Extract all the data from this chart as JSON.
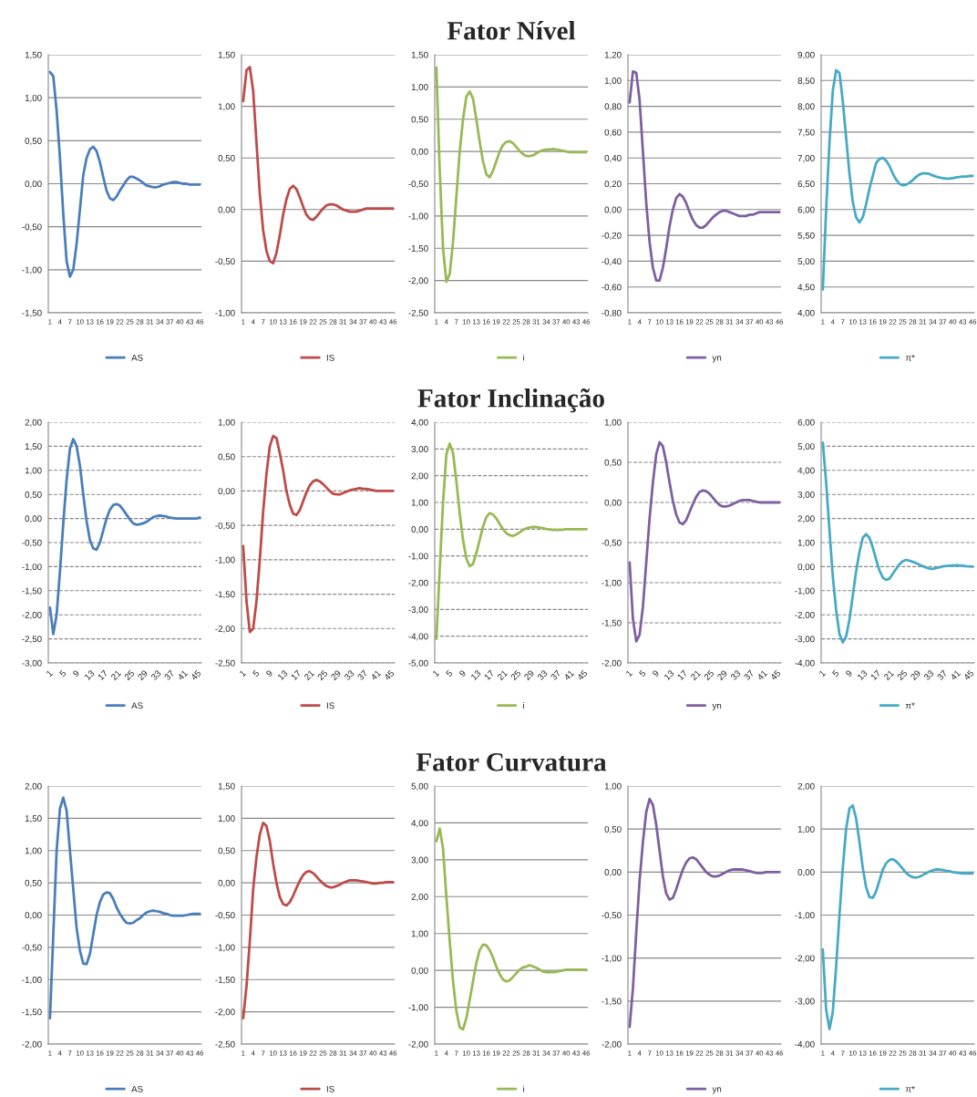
{
  "chart_data": [
    {
      "type": "line",
      "categories": [
        "1",
        null,
        null,
        "4",
        null,
        null,
        "7",
        null,
        null,
        "10",
        null,
        null,
        "13",
        null,
        null,
        "16",
        null,
        null,
        "19",
        null,
        null,
        "22",
        null,
        null,
        "25",
        null,
        null,
        "28",
        null,
        null,
        "31",
        null,
        null,
        "34",
        null,
        null,
        "37",
        null,
        null,
        "40",
        null,
        null,
        "43",
        null,
        null,
        "46"
      ],
      "series": [
        {
          "name": "AS",
          "color": "#4a7ebb",
          "values": [
            1.3,
            1.25,
            0.85,
            0.3,
            -0.35,
            -0.9,
            -1.08,
            -1.0,
            -0.7,
            -0.3,
            0.1,
            0.3,
            0.4,
            0.43,
            0.38,
            0.25,
            0.08,
            -0.08,
            -0.17,
            -0.19,
            -0.15,
            -0.08,
            -0.02,
            0.04,
            0.08,
            0.08,
            0.06,
            0.04,
            0.01,
            -0.02,
            -0.03,
            -0.04,
            -0.04,
            -0.03,
            -0.01,
            0.0,
            0.01,
            0.02,
            0.02,
            0.01,
            0.0,
            0.0,
            -0.01,
            -0.01,
            -0.01,
            -0.01
          ]
        }
      ],
      "ylim": [
        -1.5,
        1.5
      ],
      "yticks": [
        {
          "value": -1.5,
          "label": "-1,50"
        },
        {
          "value": -1,
          "label": "-1,00"
        },
        {
          "value": -0.5,
          "label": "-0,50"
        },
        {
          "value": 0,
          "label": "0,00"
        },
        {
          "value": 0.5,
          "label": "0,50"
        },
        {
          "value": 1,
          "label": "1,00"
        },
        {
          "value": 1.5,
          "label": "1,50"
        }
      ],
      "grid": "y",
      "legend": "bottom"
    },
    {
      "type": "line",
      "categories": [
        "1",
        null,
        null,
        "4",
        null,
        null,
        "7",
        null,
        null,
        "10",
        null,
        null,
        "13",
        null,
        null,
        "16",
        null,
        null,
        "19",
        null,
        null,
        "22",
        null,
        null,
        "25",
        null,
        null,
        "28",
        null,
        null,
        "31",
        null,
        null,
        "34",
        null,
        null,
        "37",
        null,
        null,
        "40",
        null,
        null,
        "43",
        null,
        null,
        "46"
      ],
      "series": [
        {
          "name": "IS",
          "color": "#be4b48",
          "values": [
            1.05,
            1.35,
            1.38,
            1.15,
            0.65,
            0.15,
            -0.2,
            -0.4,
            -0.5,
            -0.52,
            -0.42,
            -0.25,
            -0.05,
            0.1,
            0.2,
            0.23,
            0.2,
            0.12,
            0.03,
            -0.05,
            -0.09,
            -0.1,
            -0.07,
            -0.03,
            0.01,
            0.04,
            0.05,
            0.05,
            0.04,
            0.02,
            0.0,
            -0.01,
            -0.02,
            -0.02,
            -0.02,
            -0.01,
            0.0,
            0.01,
            0.01,
            0.01,
            0.01,
            0.01,
            0.01,
            0.01,
            0.01,
            0.01
          ]
        }
      ],
      "ylim": [
        -1,
        1.5
      ],
      "yticks": [
        {
          "value": -1,
          "label": "-1,00"
        },
        {
          "value": -0.5,
          "label": "-0,50"
        },
        {
          "value": 0,
          "label": "0,00"
        },
        {
          "value": 0.5,
          "label": "0,50"
        },
        {
          "value": 1,
          "label": "1,00"
        },
        {
          "value": 1.5,
          "label": "1,50"
        }
      ],
      "grid": "y",
      "legend": "bottom"
    },
    {
      "type": "line",
      "title": "Fator Nível",
      "categories": [
        "1",
        null,
        null,
        "4",
        null,
        null,
        "7",
        null,
        null,
        "10",
        null,
        null,
        "13",
        null,
        null,
        "16",
        null,
        null,
        "19",
        null,
        null,
        "22",
        null,
        null,
        "25",
        null,
        null,
        "28",
        null,
        null,
        "31",
        null,
        null,
        "34",
        null,
        null,
        "37",
        null,
        null,
        "40",
        null,
        null,
        "43",
        null,
        null,
        "46"
      ],
      "series": [
        {
          "name": "i",
          "color": "#98b954",
          "values": [
            1.3,
            -0.3,
            -1.5,
            -2.02,
            -1.9,
            -1.4,
            -0.7,
            0.0,
            0.5,
            0.85,
            0.93,
            0.82,
            0.5,
            0.15,
            -0.15,
            -0.35,
            -0.4,
            -0.3,
            -0.15,
            0.0,
            0.1,
            0.15,
            0.16,
            0.13,
            0.07,
            0.01,
            -0.04,
            -0.07,
            -0.07,
            -0.06,
            -0.03,
            0.0,
            0.02,
            0.03,
            0.03,
            0.04,
            0.03,
            0.02,
            0.01,
            0.0,
            -0.01,
            -0.01,
            -0.01,
            -0.01,
            -0.01,
            -0.01
          ]
        }
      ],
      "ylim": [
        -2.5,
        1.5
      ],
      "yticks": [
        {
          "value": -2.5,
          "label": "-2,50"
        },
        {
          "value": -2,
          "label": "-2,00"
        },
        {
          "value": -1.5,
          "label": "-1,50"
        },
        {
          "value": -1,
          "label": "-1,00"
        },
        {
          "value": -0.5,
          "label": "-0,50"
        },
        {
          "value": 0,
          "label": "0,00"
        },
        {
          "value": 0.5,
          "label": "0,50"
        },
        {
          "value": 1,
          "label": "1,00"
        },
        {
          "value": 1.5,
          "label": "1,50"
        }
      ],
      "grid": "y",
      "legend": "bottom"
    },
    {
      "type": "line",
      "categories": [
        "1",
        null,
        null,
        "4",
        null,
        null,
        "7",
        null,
        null,
        "10",
        null,
        null,
        "13",
        null,
        null,
        "16",
        null,
        null,
        "19",
        null,
        null,
        "22",
        null,
        null,
        "25",
        null,
        null,
        "28",
        null,
        null,
        "31",
        null,
        null,
        "34",
        null,
        null,
        "37",
        null,
        null,
        "40",
        null,
        null,
        "43",
        null,
        null,
        "46"
      ],
      "series": [
        {
          "name": "yn",
          "color": "#7d60a0",
          "values": [
            0.83,
            1.07,
            1.06,
            0.85,
            0.45,
            0.05,
            -0.25,
            -0.45,
            -0.55,
            -0.55,
            -0.45,
            -0.3,
            -0.13,
            0.0,
            0.09,
            0.12,
            0.1,
            0.05,
            -0.02,
            -0.08,
            -0.12,
            -0.14,
            -0.14,
            -0.12,
            -0.09,
            -0.06,
            -0.04,
            -0.02,
            -0.01,
            -0.01,
            -0.02,
            -0.03,
            -0.04,
            -0.05,
            -0.05,
            -0.05,
            -0.04,
            -0.04,
            -0.03,
            -0.02,
            -0.02,
            -0.02,
            -0.02,
            -0.02,
            -0.02,
            -0.02
          ]
        }
      ],
      "ylim": [
        -0.8,
        1.2
      ],
      "yticks": [
        {
          "value": -0.8,
          "label": "-0,80"
        },
        {
          "value": -0.6,
          "label": "-0,60"
        },
        {
          "value": -0.4,
          "label": "-0,40"
        },
        {
          "value": -0.2,
          "label": "-0,20"
        },
        {
          "value": 0,
          "label": "0,00"
        },
        {
          "value": 0.2,
          "label": "0,20"
        },
        {
          "value": 0.4,
          "label": "0,40"
        },
        {
          "value": 0.6,
          "label": "0,60"
        },
        {
          "value": 0.8,
          "label": "0,80"
        },
        {
          "value": 1,
          "label": "1,00"
        },
        {
          "value": 1.2,
          "label": "1,20"
        }
      ],
      "grid": "y",
      "legend": "bottom"
    },
    {
      "type": "line",
      "categories": [
        "1",
        null,
        null,
        "4",
        null,
        null,
        "7",
        null,
        null,
        "10",
        null,
        null,
        "13",
        null,
        null,
        "16",
        null,
        null,
        "19",
        null,
        null,
        "22",
        null,
        null,
        "25",
        null,
        null,
        "28",
        null,
        null,
        "31",
        null,
        null,
        "34",
        null,
        null,
        "37",
        null,
        null,
        "40",
        null,
        null,
        "43",
        null,
        null,
        "46"
      ],
      "series": [
        {
          "name": "π*",
          "color": "#46aac5",
          "values": [
            4.45,
            6.0,
            7.3,
            8.3,
            8.7,
            8.65,
            8.1,
            7.4,
            6.7,
            6.15,
            5.85,
            5.75,
            5.85,
            6.1,
            6.4,
            6.65,
            6.9,
            6.98,
            7.0,
            6.95,
            6.85,
            6.7,
            6.58,
            6.5,
            6.47,
            6.48,
            6.52,
            6.57,
            6.63,
            6.68,
            6.7,
            6.7,
            6.69,
            6.66,
            6.64,
            6.62,
            6.61,
            6.6,
            6.6,
            6.61,
            6.62,
            6.63,
            6.64,
            6.64,
            6.65,
            6.65
          ]
        }
      ],
      "ylim": [
        4,
        9
      ],
      "yticks": [
        {
          "value": 4,
          "label": "4,00"
        },
        {
          "value": 4.5,
          "label": "4,50"
        },
        {
          "value": 5,
          "label": "5,00"
        },
        {
          "value": 5.5,
          "label": "5,50"
        },
        {
          "value": 6,
          "label": "6,00"
        },
        {
          "value": 6.5,
          "label": "6,50"
        },
        {
          "value": 7,
          "label": "7,00"
        },
        {
          "value": 7.5,
          "label": "7,50"
        },
        {
          "value": 8,
          "label": "8,00"
        },
        {
          "value": 8.5,
          "label": "8,50"
        },
        {
          "value": 9,
          "label": "9,00"
        }
      ],
      "grid": "y",
      "legend": "bottom"
    },
    {
      "type": "line",
      "categories": [
        "1",
        null,
        null,
        null,
        "5",
        null,
        null,
        null,
        "9",
        null,
        null,
        null,
        "13",
        null,
        null,
        null,
        "17",
        null,
        null,
        null,
        "21",
        null,
        null,
        null,
        "25",
        null,
        null,
        null,
        "29",
        null,
        null,
        null,
        "33",
        null,
        null,
        null,
        "37",
        null,
        null,
        null,
        "41",
        null,
        null,
        null,
        "45",
        null
      ],
      "series": [
        {
          "name": "AS",
          "color": "#4a7ebb",
          "values": [
            -1.85,
            -2.4,
            -2.0,
            -1.1,
            -0.1,
            0.8,
            1.45,
            1.65,
            1.5,
            1.1,
            0.5,
            -0.05,
            -0.45,
            -0.62,
            -0.65,
            -0.5,
            -0.25,
            0.0,
            0.18,
            0.28,
            0.3,
            0.27,
            0.18,
            0.08,
            -0.02,
            -0.1,
            -0.13,
            -0.12,
            -0.1,
            -0.07,
            -0.02,
            0.03,
            0.05,
            0.06,
            0.05,
            0.04,
            0.02,
            0.01,
            0.0,
            0.0,
            0.0,
            0.0,
            0.0,
            0.0,
            0.0,
            0.02
          ]
        }
      ],
      "ylim": [
        -3,
        2
      ],
      "yticks": [
        {
          "value": -3,
          "label": "-3,00"
        },
        {
          "value": -2.5,
          "label": "-2,50"
        },
        {
          "value": -2,
          "label": "-2,00"
        },
        {
          "value": -1.5,
          "label": "-1,50"
        },
        {
          "value": -1,
          "label": "-1,00"
        },
        {
          "value": -0.5,
          "label": "-0,50"
        },
        {
          "value": 0,
          "label": "0,00"
        },
        {
          "value": 0.5,
          "label": "0,50"
        },
        {
          "value": 1,
          "label": "1,00"
        },
        {
          "value": 1.5,
          "label": "1,50"
        },
        {
          "value": 2,
          "label": "2,00"
        }
      ],
      "grid": "y",
      "legend": "bottom"
    },
    {
      "type": "line",
      "categories": [
        "1",
        null,
        null,
        null,
        "5",
        null,
        null,
        null,
        "9",
        null,
        null,
        null,
        "13",
        null,
        null,
        null,
        "17",
        null,
        null,
        null,
        "21",
        null,
        null,
        null,
        "25",
        null,
        null,
        null,
        "29",
        null,
        null,
        null,
        "33",
        null,
        null,
        null,
        "37",
        null,
        null,
        null,
        "41",
        null,
        null,
        null,
        "45",
        null
      ],
      "series": [
        {
          "name": "IS",
          "color": "#be4b48",
          "values": [
            -0.8,
            -1.6,
            -2.05,
            -2.0,
            -1.6,
            -1.0,
            -0.3,
            0.25,
            0.65,
            0.8,
            0.77,
            0.55,
            0.3,
            0.0,
            -0.2,
            -0.33,
            -0.35,
            -0.28,
            -0.15,
            -0.02,
            0.08,
            0.14,
            0.16,
            0.14,
            0.1,
            0.05,
            0.0,
            -0.04,
            -0.05,
            -0.05,
            -0.03,
            -0.01,
            0.01,
            0.02,
            0.03,
            0.04,
            0.03,
            0.03,
            0.02,
            0.01,
            0.0,
            0.0,
            0.0,
            0.0,
            0.0,
            0.0
          ]
        }
      ],
      "ylim": [
        -2.5,
        1
      ],
      "yticks": [
        {
          "value": -2.5,
          "label": "-2,50"
        },
        {
          "value": -2,
          "label": "-2,00"
        },
        {
          "value": -1.5,
          "label": "-1,50"
        },
        {
          "value": -1,
          "label": "-1,00"
        },
        {
          "value": -0.5,
          "label": "-0,50"
        },
        {
          "value": 0,
          "label": "0,00"
        },
        {
          "value": 0.5,
          "label": "0,50"
        },
        {
          "value": 1,
          "label": "1,00"
        }
      ],
      "grid": "y",
      "legend": "bottom"
    },
    {
      "type": "line",
      "title": "Fator Inclinação",
      "categories": [
        "1",
        null,
        null,
        null,
        "5",
        null,
        null,
        null,
        "9",
        null,
        null,
        null,
        "13",
        null,
        null,
        null,
        "17",
        null,
        null,
        null,
        "21",
        null,
        null,
        null,
        "25",
        null,
        null,
        null,
        "29",
        null,
        null,
        null,
        "33",
        null,
        null,
        null,
        "37",
        null,
        null,
        null,
        "41",
        null,
        null,
        null,
        "45",
        null
      ],
      "series": [
        {
          "name": "i",
          "color": "#98b954",
          "values": [
            -4.1,
            -1.5,
            1.0,
            2.8,
            3.2,
            2.85,
            1.8,
            0.6,
            -0.4,
            -1.1,
            -1.38,
            -1.3,
            -0.9,
            -0.4,
            0.1,
            0.45,
            0.6,
            0.55,
            0.4,
            0.2,
            0.0,
            -0.15,
            -0.22,
            -0.25,
            -0.2,
            -0.12,
            -0.03,
            0.03,
            0.07,
            0.08,
            0.08,
            0.06,
            0.04,
            0.01,
            -0.01,
            -0.03,
            -0.03,
            -0.03,
            -0.02,
            0.0,
            0.0,
            0.0,
            0.0,
            0.0,
            0.0,
            0.0
          ]
        }
      ],
      "ylim": [
        -5,
        4
      ],
      "yticks": [
        {
          "value": -5,
          "label": "-5,00"
        },
        {
          "value": -4,
          "label": "-4,00"
        },
        {
          "value": -3,
          "label": "-3,00"
        },
        {
          "value": -2,
          "label": "-2,00"
        },
        {
          "value": -1,
          "label": "-1,00"
        },
        {
          "value": 0,
          "label": "0,00"
        },
        {
          "value": 1,
          "label": "1,00"
        },
        {
          "value": 2,
          "label": "2,00"
        },
        {
          "value": 3,
          "label": "3,00"
        },
        {
          "value": 4,
          "label": "4,00"
        }
      ],
      "grid": "y",
      "legend": "bottom"
    },
    {
      "type": "line",
      "categories": [
        "1",
        null,
        null,
        null,
        "5",
        null,
        null,
        null,
        "9",
        null,
        null,
        null,
        "13",
        null,
        null,
        null,
        "17",
        null,
        null,
        null,
        "21",
        null,
        null,
        null,
        "25",
        null,
        null,
        null,
        "29",
        null,
        null,
        null,
        "33",
        null,
        null,
        null,
        "37",
        null,
        null,
        null,
        "41",
        null,
        null,
        null,
        "45",
        null
      ],
      "series": [
        {
          "name": "yn",
          "color": "#7d60a0",
          "values": [
            -0.75,
            -1.45,
            -1.73,
            -1.65,
            -1.3,
            -0.75,
            -0.2,
            0.25,
            0.6,
            0.75,
            0.7,
            0.5,
            0.25,
            0.02,
            -0.15,
            -0.25,
            -0.27,
            -0.22,
            -0.12,
            -0.02,
            0.07,
            0.13,
            0.15,
            0.14,
            0.11,
            0.06,
            0.01,
            -0.03,
            -0.05,
            -0.05,
            -0.04,
            -0.02,
            0.0,
            0.02,
            0.03,
            0.03,
            0.03,
            0.02,
            0.01,
            0.0,
            0.0,
            0.0,
            0.0,
            0.0,
            0.0,
            0.0
          ]
        }
      ],
      "ylim": [
        -2,
        1
      ],
      "yticks": [
        {
          "value": -2,
          "label": "-2,00"
        },
        {
          "value": -1.5,
          "label": "-1,50"
        },
        {
          "value": -1,
          "label": "-1,00"
        },
        {
          "value": -0.5,
          "label": "-0,50"
        },
        {
          "value": 0,
          "label": "0,00"
        },
        {
          "value": 0.5,
          "label": "0,50"
        },
        {
          "value": 1,
          "label": "1,00"
        }
      ],
      "grid": "y",
      "legend": "bottom"
    },
    {
      "type": "line",
      "categories": [
        "1",
        null,
        null,
        null,
        "5",
        null,
        null,
        null,
        "9",
        null,
        null,
        null,
        "13",
        null,
        null,
        null,
        "17",
        null,
        null,
        null,
        "21",
        null,
        null,
        null,
        "25",
        null,
        null,
        null,
        "29",
        null,
        null,
        null,
        "33",
        null,
        null,
        null,
        "37",
        null,
        null,
        null,
        "41",
        null,
        null,
        null,
        "45",
        null
      ],
      "series": [
        {
          "name": "π*",
          "color": "#46aac5",
          "values": [
            5.15,
            3.5,
            1.5,
            -0.4,
            -1.8,
            -2.8,
            -3.15,
            -2.9,
            -2.2,
            -1.2,
            -0.2,
            0.6,
            1.2,
            1.35,
            1.2,
            0.8,
            0.3,
            -0.15,
            -0.45,
            -0.55,
            -0.5,
            -0.3,
            -0.1,
            0.1,
            0.22,
            0.28,
            0.25,
            0.2,
            0.15,
            0.08,
            0.02,
            -0.03,
            -0.08,
            -0.09,
            -0.06,
            -0.03,
            0.01,
            0.03,
            0.04,
            0.05,
            0.06,
            0.05,
            0.04,
            0.02,
            0.01,
            0.0
          ]
        }
      ],
      "ylim": [
        -4,
        6
      ],
      "yticks": [
        {
          "value": -4,
          "label": "-4,00"
        },
        {
          "value": -3,
          "label": "-3,00"
        },
        {
          "value": -2,
          "label": "-2,00"
        },
        {
          "value": -1,
          "label": "-1,00"
        },
        {
          "value": 0,
          "label": "0,00"
        },
        {
          "value": 1,
          "label": "1,00"
        },
        {
          "value": 2,
          "label": "2,00"
        },
        {
          "value": 3,
          "label": "3,00"
        },
        {
          "value": 4,
          "label": "4,00"
        },
        {
          "value": 5,
          "label": "5,00"
        },
        {
          "value": 6,
          "label": "6,00"
        }
      ],
      "grid": "y",
      "legend": "bottom"
    },
    {
      "type": "line",
      "categories": [
        "1",
        null,
        null,
        "4",
        null,
        null,
        "7",
        null,
        null,
        "10",
        null,
        null,
        "13",
        null,
        null,
        "16",
        null,
        null,
        "19",
        null,
        null,
        "22",
        null,
        null,
        "25",
        null,
        null,
        "28",
        null,
        null,
        "31",
        null,
        null,
        "34",
        null,
        null,
        "37",
        null,
        null,
        "40",
        null,
        null,
        "43",
        null,
        null,
        "46"
      ],
      "series": [
        {
          "name": "AS",
          "color": "#4a7ebb",
          "values": [
            -1.6,
            -0.3,
            1.0,
            1.65,
            1.82,
            1.62,
            1.0,
            0.4,
            -0.2,
            -0.55,
            -0.75,
            -0.76,
            -0.6,
            -0.3,
            0.0,
            0.2,
            0.32,
            0.35,
            0.34,
            0.25,
            0.12,
            0.02,
            -0.06,
            -0.12,
            -0.13,
            -0.12,
            -0.08,
            -0.05,
            0.0,
            0.04,
            0.06,
            0.07,
            0.06,
            0.05,
            0.03,
            0.02,
            0.0,
            -0.01,
            -0.01,
            -0.01,
            -0.01,
            0.0,
            0.01,
            0.02,
            0.02,
            0.02
          ]
        }
      ],
      "ylim": [
        -2,
        2
      ],
      "yticks": [
        {
          "value": -2,
          "label": "-2,00"
        },
        {
          "value": -1.5,
          "label": "-1,50"
        },
        {
          "value": -1,
          "label": "-1,00"
        },
        {
          "value": -0.5,
          "label": "-0,50"
        },
        {
          "value": 0,
          "label": "0,00"
        },
        {
          "value": 0.5,
          "label": "0,50"
        },
        {
          "value": 1,
          "label": "1,00"
        },
        {
          "value": 1.5,
          "label": "1,50"
        },
        {
          "value": 2,
          "label": "2,00"
        }
      ],
      "grid": "y",
      "legend": "bottom"
    },
    {
      "type": "line",
      "categories": [
        "1",
        null,
        null,
        "4",
        null,
        null,
        "7",
        null,
        null,
        "10",
        null,
        null,
        "13",
        null,
        null,
        "16",
        null,
        null,
        "19",
        null,
        null,
        "22",
        null,
        null,
        "25",
        null,
        null,
        "28",
        null,
        null,
        "31",
        null,
        null,
        "34",
        null,
        null,
        "37",
        null,
        null,
        "40",
        null,
        null,
        "43",
        null,
        null,
        "46"
      ],
      "series": [
        {
          "name": "IS",
          "color": "#be4b48",
          "values": [
            -2.1,
            -1.6,
            -0.9,
            -0.1,
            0.4,
            0.75,
            0.93,
            0.88,
            0.65,
            0.3,
            0.0,
            -0.22,
            -0.33,
            -0.35,
            -0.3,
            -0.2,
            -0.08,
            0.03,
            0.12,
            0.17,
            0.18,
            0.15,
            0.1,
            0.04,
            -0.01,
            -0.05,
            -0.07,
            -0.07,
            -0.05,
            -0.03,
            0.0,
            0.02,
            0.04,
            0.04,
            0.04,
            0.03,
            0.02,
            0.01,
            0.0,
            -0.01,
            -0.01,
            0.0,
            0.0,
            0.01,
            0.01,
            0.01
          ]
        }
      ],
      "ylim": [
        -2.5,
        1.5
      ],
      "yticks": [
        {
          "value": -2.5,
          "label": "-2,50"
        },
        {
          "value": -2,
          "label": "-2,00"
        },
        {
          "value": -1.5,
          "label": "-1,50"
        },
        {
          "value": -1,
          "label": "-1,00"
        },
        {
          "value": -0.5,
          "label": "-0,50"
        },
        {
          "value": 0,
          "label": "0,00"
        },
        {
          "value": 0.5,
          "label": "0,50"
        },
        {
          "value": 1,
          "label": "1,00"
        },
        {
          "value": 1.5,
          "label": "1,50"
        }
      ],
      "grid": "y",
      "legend": "bottom"
    },
    {
      "type": "line",
      "title": "Fator Curvatura",
      "categories": [
        "1",
        null,
        null,
        "4",
        null,
        null,
        "7",
        null,
        null,
        "10",
        null,
        null,
        "13",
        null,
        null,
        "16",
        null,
        null,
        "19",
        null,
        null,
        "22",
        null,
        null,
        "25",
        null,
        null,
        "28",
        null,
        null,
        "31",
        null,
        null,
        "34",
        null,
        null,
        "37",
        null,
        null,
        "40",
        null,
        null,
        "43",
        null,
        null,
        "46"
      ],
      "series": [
        {
          "name": "i",
          "color": "#98b954",
          "values": [
            3.5,
            3.85,
            3.3,
            2.0,
            0.8,
            -0.3,
            -1.1,
            -1.55,
            -1.6,
            -1.3,
            -0.8,
            -0.3,
            0.2,
            0.55,
            0.7,
            0.68,
            0.55,
            0.35,
            0.1,
            -0.1,
            -0.25,
            -0.3,
            -0.27,
            -0.18,
            -0.08,
            0.02,
            0.08,
            0.1,
            0.14,
            0.11,
            0.07,
            0.02,
            -0.03,
            -0.05,
            -0.05,
            -0.05,
            -0.04,
            -0.02,
            0.0,
            0.02,
            0.02,
            0.02,
            0.02,
            0.02,
            0.02,
            0.02
          ]
        }
      ],
      "ylim": [
        -2,
        5
      ],
      "yticks": [
        {
          "value": -2,
          "label": "-2,00"
        },
        {
          "value": -1,
          "label": "-1,00"
        },
        {
          "value": 0,
          "label": "0,00"
        },
        {
          "value": 1,
          "label": "1,00"
        },
        {
          "value": 2,
          "label": "2,00"
        },
        {
          "value": 3,
          "label": "3,00"
        },
        {
          "value": 4,
          "label": "4,00"
        },
        {
          "value": 5,
          "label": "5,00"
        }
      ],
      "grid": "y",
      "legend": "bottom"
    },
    {
      "type": "line",
      "categories": [
        "1",
        null,
        null,
        "4",
        null,
        null,
        "7",
        null,
        null,
        "10",
        null,
        null,
        "13",
        null,
        null,
        "16",
        null,
        null,
        "19",
        null,
        null,
        "22",
        null,
        null,
        "25",
        null,
        null,
        "28",
        null,
        null,
        "31",
        null,
        null,
        "34",
        null,
        null,
        "37",
        null,
        null,
        "40",
        null,
        null,
        "43",
        null,
        null,
        "46"
      ],
      "series": [
        {
          "name": "yn",
          "color": "#7d60a0",
          "values": [
            -1.8,
            -1.35,
            -0.7,
            -0.1,
            0.35,
            0.7,
            0.85,
            0.78,
            0.55,
            0.25,
            -0.05,
            -0.25,
            -0.32,
            -0.3,
            -0.2,
            -0.08,
            0.03,
            0.11,
            0.16,
            0.17,
            0.15,
            0.1,
            0.05,
            0.0,
            -0.03,
            -0.05,
            -0.05,
            -0.04,
            -0.02,
            0.0,
            0.02,
            0.03,
            0.03,
            0.03,
            0.03,
            0.02,
            0.01,
            0.0,
            -0.01,
            -0.01,
            -0.01,
            0.0,
            0.0,
            0.0,
            0.0,
            0.0
          ]
        }
      ],
      "ylim": [
        -2,
        1
      ],
      "yticks": [
        {
          "value": -2,
          "label": "-2,00"
        },
        {
          "value": -1.5,
          "label": "-1,50"
        },
        {
          "value": -1,
          "label": "-1,00"
        },
        {
          "value": -0.5,
          "label": "-0,50"
        },
        {
          "value": 0,
          "label": "0,00"
        },
        {
          "value": 0.5,
          "label": "0,50"
        },
        {
          "value": 1,
          "label": "1,00"
        }
      ],
      "grid": "y",
      "legend": "bottom"
    },
    {
      "type": "line",
      "categories": [
        "1",
        null,
        null,
        "4",
        null,
        null,
        "7",
        null,
        null,
        "10",
        null,
        null,
        "13",
        null,
        null,
        "16",
        null,
        null,
        "19",
        null,
        null,
        "22",
        null,
        null,
        "25",
        null,
        null,
        "28",
        null,
        null,
        "31",
        null,
        null,
        "34",
        null,
        null,
        "37",
        null,
        null,
        "40",
        null,
        null,
        "43",
        null,
        null,
        "46"
      ],
      "series": [
        {
          "name": "π*",
          "color": "#46aac5",
          "values": [
            -1.8,
            -3.2,
            -3.65,
            -3.25,
            -2.2,
            -1.0,
            0.1,
            1.0,
            1.48,
            1.55,
            1.25,
            0.7,
            0.1,
            -0.35,
            -0.58,
            -0.6,
            -0.45,
            -0.2,
            0.05,
            0.2,
            0.28,
            0.3,
            0.25,
            0.17,
            0.08,
            -0.02,
            -0.08,
            -0.12,
            -0.13,
            -0.11,
            -0.07,
            -0.03,
            0.01,
            0.04,
            0.06,
            0.06,
            0.05,
            0.03,
            0.02,
            0.0,
            -0.01,
            -0.02,
            -0.03,
            -0.03,
            -0.03,
            -0.03
          ]
        }
      ],
      "ylim": [
        -4,
        2
      ],
      "yticks": [
        {
          "value": -4,
          "label": "-4,00"
        },
        {
          "value": -3,
          "label": "-3,00"
        },
        {
          "value": -2,
          "label": "-2,00"
        },
        {
          "value": -1,
          "label": "-1,00"
        },
        {
          "value": 0,
          "label": "0,00"
        },
        {
          "value": 1,
          "label": "1,00"
        },
        {
          "value": 2,
          "label": "2,00"
        }
      ],
      "grid": "y",
      "legend": "bottom"
    }
  ]
}
